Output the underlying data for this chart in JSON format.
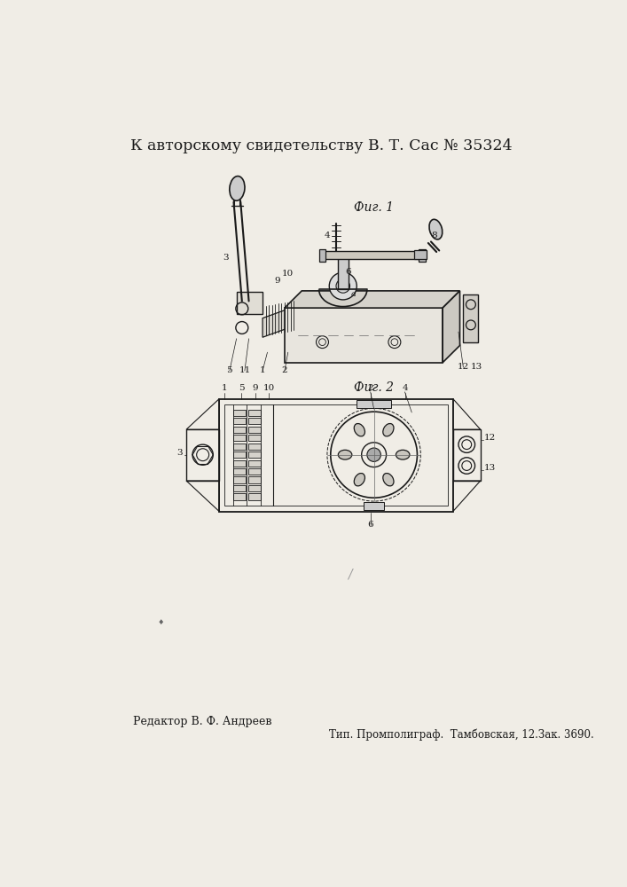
{
  "title": "К авторскому свидетельству В. Т. Сас № 35324",
  "fig1_label": "Фиг. 1",
  "fig2_label": "Фиг. 2",
  "footer_left": "Редактор В. Ф. Андреев",
  "footer_right": "Тип. Промполиграф.  Тамбовская, 12.Зак. 3690.",
  "bg_color": "#f0ede6",
  "line_color": "#1a1a1a"
}
